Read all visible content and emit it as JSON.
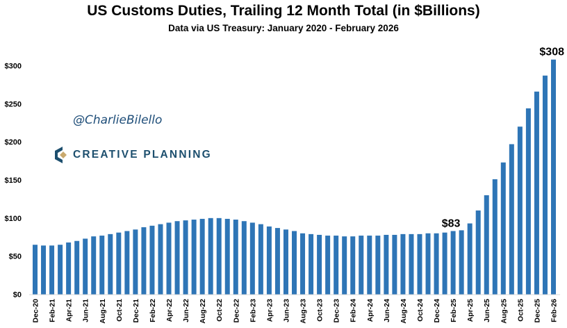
{
  "chart_data": {
    "type": "bar",
    "title": "US Customs Duties, Trailing 12 Month Total (in $Billions)",
    "subtitle": "Data via US Treasury: January 2020 - February 2026",
    "xlabel": "",
    "ylabel": "",
    "ylim": [
      0,
      330
    ],
    "yticks": [
      0,
      50,
      100,
      150,
      200,
      250,
      300
    ],
    "ytick_labels": [
      "$0",
      "$50",
      "$100",
      "$150",
      "$200",
      "$250",
      "$300"
    ],
    "grid": false,
    "bar_color": "#2e75b6",
    "categories": [
      "Dec-20",
      "Jan-21",
      "Feb-21",
      "Mar-21",
      "Apr-21",
      "May-21",
      "Jun-21",
      "Jul-21",
      "Aug-21",
      "Sep-21",
      "Oct-21",
      "Nov-21",
      "Dec-21",
      "Jan-22",
      "Feb-22",
      "Mar-22",
      "Apr-22",
      "May-22",
      "Jun-22",
      "Jul-22",
      "Aug-22",
      "Sep-22",
      "Oct-22",
      "Nov-22",
      "Dec-22",
      "Jan-23",
      "Feb-23",
      "Mar-23",
      "Apr-23",
      "May-23",
      "Jun-23",
      "Jul-23",
      "Aug-23",
      "Sep-23",
      "Oct-23",
      "Nov-23",
      "Dec-23",
      "Jan-24",
      "Feb-24",
      "Mar-24",
      "Apr-24",
      "May-24",
      "Jun-24",
      "Jul-24",
      "Aug-24",
      "Sep-24",
      "Oct-24",
      "Nov-24",
      "Dec-24",
      "Jan-25",
      "Feb-25",
      "Mar-25",
      "Apr-25",
      "May-25",
      "Jun-25",
      "Jul-25",
      "Aug-25",
      "Sep-25",
      "Oct-25",
      "Nov-25",
      "Dec-25",
      "Jan-26",
      "Feb-26"
    ],
    "values": [
      65,
      64,
      64,
      65,
      68,
      70,
      73,
      76,
      77,
      79,
      81,
      83,
      85,
      88,
      90,
      92,
      94,
      96,
      97,
      98,
      99,
      100,
      100,
      99,
      98,
      96,
      94,
      92,
      89,
      87,
      85,
      83,
      80,
      79,
      78,
      77,
      77,
      76,
      76,
      77,
      77,
      77,
      78,
      78,
      79,
      79,
      79,
      80,
      80,
      81,
      83,
      84,
      93,
      110,
      130,
      151,
      173,
      197,
      220,
      244,
      266,
      287,
      308
    ],
    "annotations": [
      {
        "category": "Feb-25",
        "text": "$83"
      },
      {
        "category": "Feb-26",
        "text": "$308"
      }
    ]
  },
  "watermark": {
    "handle": "@CharlieBilello",
    "logo_text": "CREATIVE PLANNING"
  }
}
